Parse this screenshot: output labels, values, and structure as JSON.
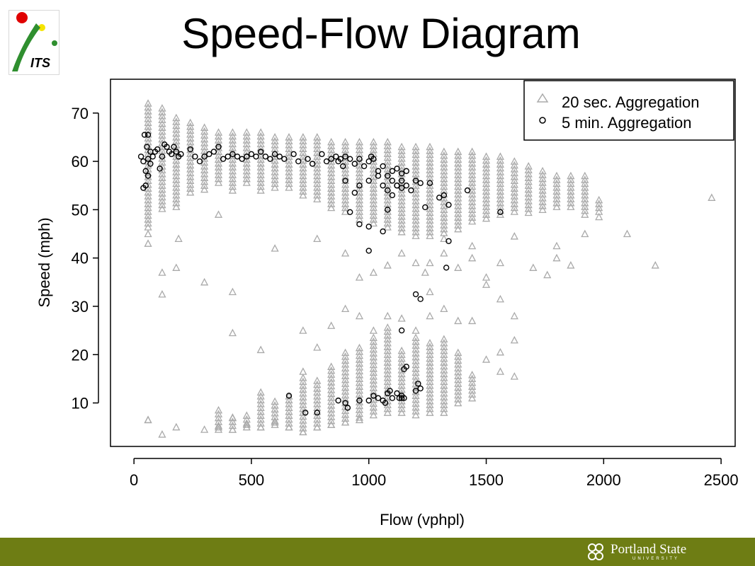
{
  "slide": {
    "title": "Speed-Flow Diagram",
    "logo_text": "ITS",
    "footer": {
      "org_name": "Portland State",
      "org_sub": "UNIVERSITY",
      "bar_color": "#6e7d14"
    }
  },
  "chart_data": {
    "type": "scatter",
    "title": "Speed-Flow Diagram",
    "xlabel": "Flow (vphpl)",
    "ylabel": "Speed (mph)",
    "xlim": [
      -100,
      2560
    ],
    "ylim": [
      1,
      77
    ],
    "xticks": [
      0,
      500,
      1000,
      1500,
      2000,
      2500
    ],
    "yticks": [
      10,
      20,
      30,
      40,
      50,
      60,
      70
    ],
    "legend_position": "top-right",
    "series": [
      {
        "name": "20 sec. Aggregation",
        "marker": "triangle",
        "color": "#aaaaaa",
        "column_x": [
          60,
          120,
          180,
          240,
          300,
          360,
          420,
          480,
          540,
          600,
          660,
          720,
          780,
          840,
          900,
          960,
          1020,
          1080,
          1140,
          1200,
          1260,
          1320,
          1380,
          1440,
          1500,
          1560,
          1620,
          1680,
          1740,
          1800,
          1860,
          1920,
          1980
        ],
        "column_top": [
          72,
          71,
          69,
          68,
          67,
          66,
          66,
          66,
          66,
          65,
          65,
          65,
          65,
          64,
          64,
          64,
          64,
          64,
          63,
          63,
          63,
          62,
          62,
          62,
          61,
          61,
          60,
          59,
          58,
          57,
          57,
          57,
          52
        ],
        "column_bottom": [
          46,
          50,
          50,
          53,
          54,
          55,
          54,
          55,
          54,
          54,
          54,
          53,
          52,
          50,
          49,
          48,
          47,
          46,
          45,
          44,
          44,
          45,
          46,
          47,
          48,
          49,
          49,
          49,
          50,
          50,
          50,
          49,
          49
        ],
        "x": [
          60,
          60,
          60,
          120,
          120,
          180,
          190,
          300,
          360,
          420,
          420,
          600,
          720,
          780,
          900,
          960,
          1020,
          1080,
          1140,
          1200,
          1240,
          1260,
          1320,
          1380,
          1440,
          1500,
          1500,
          1560,
          1560,
          1620,
          1620,
          1700,
          1760,
          1800,
          1800,
          1860,
          1920,
          1980,
          2100,
          2220,
          2460,
          60,
          120,
          180,
          300,
          360,
          420,
          480,
          540,
          600,
          660,
          720,
          780,
          840,
          900,
          960,
          420,
          540,
          720,
          780,
          840,
          900,
          960,
          1020,
          1080,
          1140,
          1200,
          1260,
          1320,
          1380,
          1440,
          1500,
          1560,
          1620,
          1260,
          1320,
          1440,
          1620,
          1560
        ],
        "y": [
          43,
          45,
          6.5,
          37,
          32.5,
          38,
          44,
          35,
          49,
          33,
          24.5,
          42,
          25,
          44,
          41,
          36,
          37,
          38.5,
          41,
          39,
          37,
          39,
          41,
          38,
          40,
          36,
          34.5,
          31.5,
          39,
          28,
          23,
          38,
          36.5,
          42.5,
          40,
          38.5,
          45,
          48.5,
          45,
          38.5,
          52.5,
          6.5,
          3.5,
          5,
          4.5,
          5,
          4.5,
          5.5,
          5,
          6,
          5,
          4,
          5,
          5.5,
          6,
          6.5,
          7,
          21,
          16.5,
          21.5,
          26,
          29.5,
          28,
          25,
          28,
          27.5,
          25,
          28,
          29.5,
          27,
          27,
          19,
          20.5,
          15.5,
          33,
          44,
          42.5,
          44.5,
          16.5
        ]
      },
      {
        "name": "5 min. Aggregation",
        "marker": "circle",
        "color": "#000000",
        "x": [
          30,
          40,
          45,
          50,
          55,
          60,
          60,
          70,
          80,
          100,
          120,
          140,
          160,
          180,
          200,
          240,
          260,
          280,
          300,
          320,
          340,
          360,
          380,
          400,
          420,
          440,
          460,
          480,
          500,
          520,
          540,
          560,
          580,
          600,
          620,
          640,
          680,
          700,
          740,
          760,
          800,
          820,
          840,
          860,
          870,
          880,
          890,
          900,
          920,
          940,
          960,
          980,
          1000,
          1010,
          1020,
          1040,
          1060,
          1080,
          1100,
          1120,
          1140,
          1160,
          40,
          50,
          60,
          70,
          90,
          110,
          130,
          150,
          170,
          190,
          900,
          940,
          960,
          1000,
          1040,
          1060,
          1080,
          1100,
          1120,
          1140,
          1160,
          1180,
          1200,
          1220,
          1240,
          1260,
          1300,
          1320,
          1340,
          1420,
          1560,
          1340,
          1330,
          1200,
          1220,
          1140,
          1150,
          1160,
          1140,
          1130,
          660,
          730,
          780,
          870,
          900,
          910,
          960,
          1000,
          1020,
          1040,
          1060,
          1070,
          1080,
          1090,
          1100,
          1120,
          1140,
          1150,
          1200,
          1210,
          1220,
          1000,
          1060,
          1080,
          1100,
          1120,
          1140,
          920,
          960,
          1000
        ],
        "y": [
          61,
          60,
          65.5,
          58,
          63,
          60.5,
          57,
          62,
          61,
          62.5,
          61,
          63,
          61.5,
          62,
          61.5,
          62.5,
          61,
          60,
          61,
          61.5,
          62,
          63,
          60.5,
          61,
          61.5,
          61,
          60.5,
          61,
          61.5,
          61,
          62,
          61,
          60.5,
          61.5,
          61,
          60.5,
          61.5,
          60,
          60.5,
          59.5,
          61.5,
          60,
          60.5,
          61,
          60,
          60.5,
          59,
          61,
          60.5,
          59.5,
          60.5,
          59,
          60,
          61,
          60.5,
          58,
          59,
          57,
          58,
          58.5,
          57.5,
          58,
          54.5,
          55,
          65.5,
          59.5,
          62,
          58.5,
          63.5,
          62,
          63,
          61,
          56,
          53.5,
          55,
          56,
          57,
          55,
          54,
          56,
          55,
          54.5,
          55,
          54,
          56,
          55.5,
          50.5,
          55.5,
          52.5,
          53,
          51,
          54,
          49.5,
          43.5,
          38,
          32.5,
          31.5,
          25,
          17,
          17.5,
          11,
          11,
          11.5,
          8,
          8,
          10.5,
          10,
          9,
          10.5,
          10.5,
          11.5,
          11,
          10.5,
          10,
          12,
          12.5,
          11,
          12,
          11.5,
          11,
          12.5,
          14,
          13,
          46.5,
          45.5,
          50,
          53,
          55,
          56,
          49.5,
          47,
          41.5
        ]
      }
    ]
  }
}
